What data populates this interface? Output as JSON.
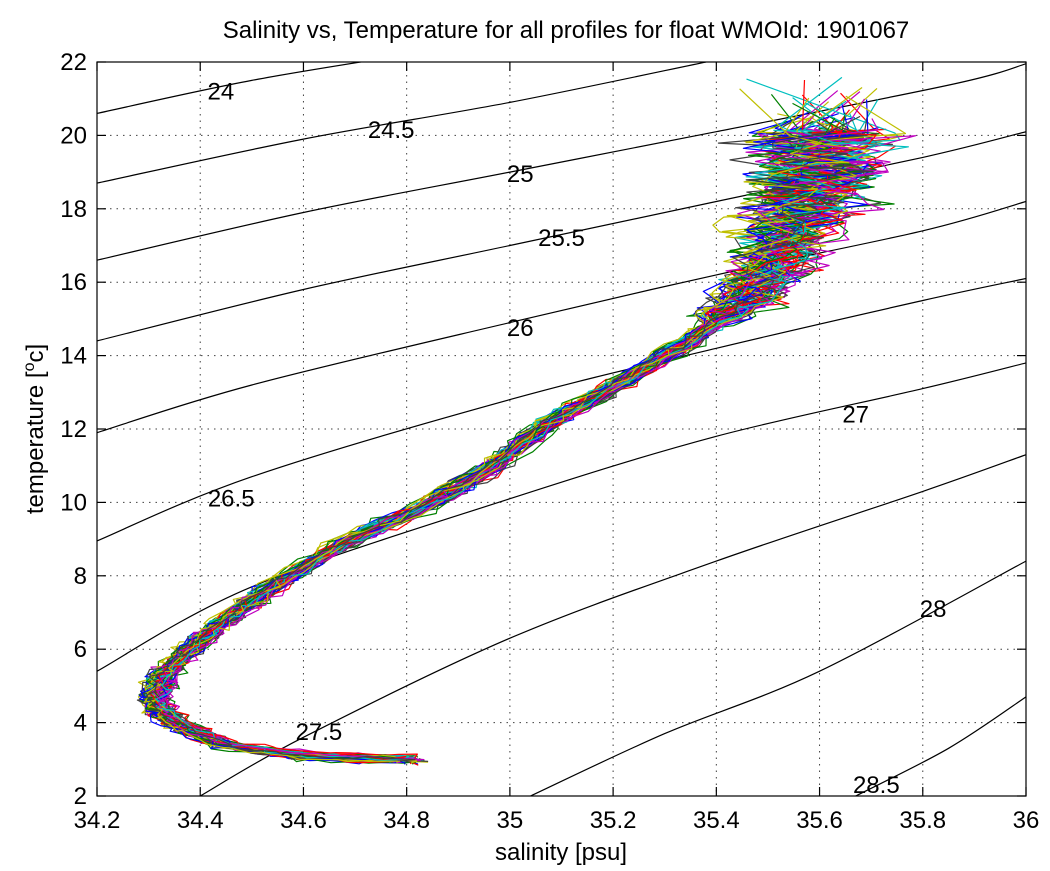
{
  "chart_data": {
    "type": "line",
    "title": "Salinity vs, Temperature for all profiles for float WMOId: 1901067",
    "xlabel": "salinity [psu]",
    "ylabel_main": "temperature [",
    "ylabel_sup": "o",
    "ylabel_end": "c]",
    "xlim": [
      34.2,
      36
    ],
    "ylim": [
      2,
      22
    ],
    "grid": true,
    "x_ticks": [
      {
        "value": 34.2,
        "label": "34.2"
      },
      {
        "value": 34.4,
        "label": "34.4"
      },
      {
        "value": 34.6,
        "label": "34.6"
      },
      {
        "value": 34.8,
        "label": "34.8"
      },
      {
        "value": 35.0,
        "label": "35"
      },
      {
        "value": 35.2,
        "label": "35.2"
      },
      {
        "value": 35.4,
        "label": "35.4"
      },
      {
        "value": 35.6,
        "label": "35.6"
      },
      {
        "value": 35.8,
        "label": "35.8"
      },
      {
        "value": 36.0,
        "label": "36"
      }
    ],
    "y_ticks": [
      {
        "value": 2,
        "label": "2"
      },
      {
        "value": 4,
        "label": "4"
      },
      {
        "value": 6,
        "label": "6"
      },
      {
        "value": 8,
        "label": "8"
      },
      {
        "value": 10,
        "label": "10"
      },
      {
        "value": 12,
        "label": "12"
      },
      {
        "value": 14,
        "label": "14"
      },
      {
        "value": 16,
        "label": "16"
      },
      {
        "value": 18,
        "label": "18"
      },
      {
        "value": 20,
        "label": "20"
      },
      {
        "value": 22,
        "label": "22"
      }
    ],
    "density_contours": [
      {
        "label": "24",
        "points": [
          [
            34.2,
            20.6
          ],
          [
            34.5,
            21.5
          ],
          [
            34.8,
            22.2
          ]
        ],
        "label_at": [
          34.44,
          21.2
        ]
      },
      {
        "label": "24.5",
        "points": [
          [
            34.2,
            18.7
          ],
          [
            34.6,
            19.9
          ],
          [
            35.0,
            20.9
          ],
          [
            35.38,
            22.0
          ]
        ],
        "label_at": [
          34.77,
          20.15
        ]
      },
      {
        "label": "25",
        "points": [
          [
            34.2,
            16.6
          ],
          [
            34.6,
            17.9
          ],
          [
            35.0,
            19.0
          ],
          [
            35.4,
            20.1
          ],
          [
            35.86,
            21.4
          ],
          [
            36.0,
            21.95
          ]
        ],
        "label_at": [
          35.02,
          18.95
        ]
      },
      {
        "label": "25.5",
        "points": [
          [
            34.2,
            14.4
          ],
          [
            34.6,
            15.8
          ],
          [
            35.0,
            17.0
          ],
          [
            35.4,
            18.2
          ],
          [
            35.8,
            19.4
          ],
          [
            36.0,
            20.1
          ]
        ],
        "label_at": [
          35.1,
          17.2
        ]
      },
      {
        "label": "26",
        "points": [
          [
            34.2,
            11.9
          ],
          [
            34.5,
            13.2
          ],
          [
            35.0,
            14.9
          ],
          [
            35.4,
            16.2
          ],
          [
            35.8,
            17.4
          ],
          [
            36.0,
            18.2
          ]
        ],
        "label_at": [
          35.02,
          14.75
        ]
      },
      {
        "label": "26.5",
        "points": [
          [
            34.2,
            8.95
          ],
          [
            34.5,
            10.7
          ],
          [
            35.0,
            12.8
          ],
          [
            35.4,
            14.2
          ],
          [
            35.8,
            15.5
          ],
          [
            36.0,
            16.1
          ]
        ],
        "label_at": [
          34.46,
          10.1
        ]
      },
      {
        "label": "27",
        "points": [
          [
            34.2,
            5.4
          ],
          [
            34.5,
            7.7
          ],
          [
            35.0,
            10.1
          ],
          [
            35.4,
            11.8
          ],
          [
            35.8,
            13.1
          ],
          [
            36.0,
            13.8
          ]
        ],
        "label_at": [
          35.67,
          12.4
        ]
      },
      {
        "label": "27.5",
        "points": [
          [
            34.4,
            2.0
          ],
          [
            34.6,
            3.6
          ],
          [
            35.0,
            6.3
          ],
          [
            35.4,
            8.4
          ],
          [
            35.8,
            10.3
          ],
          [
            36.0,
            11.3
          ]
        ],
        "label_at": [
          34.63,
          3.75
        ]
      },
      {
        "label": "28",
        "points": [
          [
            35.04,
            2.0
          ],
          [
            35.3,
            3.7
          ],
          [
            35.6,
            5.4
          ],
          [
            36.0,
            8.4
          ]
        ],
        "label_at": [
          35.82,
          7.1
        ]
      },
      {
        "label": "28.5",
        "points": [
          [
            35.67,
            2.0
          ],
          [
            35.85,
            3.3
          ],
          [
            36.0,
            4.7
          ]
        ],
        "label_at": [
          35.71,
          2.3
        ]
      }
    ],
    "series_colors": [
      "#0000ff",
      "#008000",
      "#ff0000",
      "#00bfbf",
      "#bf00bf",
      "#bfbf00",
      "#404040"
    ],
    "profile_count": 70,
    "profile_centerline": [
      [
        34.8,
        3.0
      ],
      [
        34.6,
        3.1
      ],
      [
        34.45,
        3.4
      ],
      [
        34.35,
        4.0
      ],
      [
        34.31,
        4.6
      ],
      [
        34.33,
        5.3
      ],
      [
        34.38,
        6.0
      ],
      [
        34.45,
        6.8
      ],
      [
        34.55,
        7.8
      ],
      [
        34.68,
        8.9
      ],
      [
        34.85,
        10.0
      ],
      [
        34.97,
        11.0
      ],
      [
        35.08,
        12.2
      ],
      [
        35.22,
        13.3
      ],
      [
        35.35,
        14.4
      ],
      [
        35.45,
        15.4
      ],
      [
        35.52,
        16.6
      ],
      [
        35.56,
        17.8
      ],
      [
        35.6,
        19.0
      ],
      [
        35.62,
        20.3
      ]
    ]
  }
}
